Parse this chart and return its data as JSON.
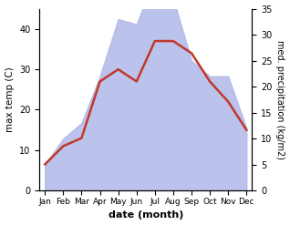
{
  "months": [
    "Jan",
    "Feb",
    "Mar",
    "Apr",
    "May",
    "Jun",
    "Jul",
    "Aug",
    "Sep",
    "Oct",
    "Nov",
    "Dec"
  ],
  "month_x": [
    0,
    1,
    2,
    3,
    4,
    5,
    6,
    7,
    8,
    9,
    10,
    11
  ],
  "temperature": [
    6.5,
    11,
    13,
    27,
    30,
    27,
    37,
    37,
    34,
    27,
    22,
    15
  ],
  "precipitation_mm": [
    5,
    10,
    13,
    22,
    33,
    32,
    41,
    37,
    25,
    22,
    22,
    12
  ],
  "temp_color": "#c0392b",
  "precip_fill_color": "#b0b8e8",
  "temp_ylim": [
    0,
    45
  ],
  "precip_ylim": [
    0,
    35
  ],
  "temp_yticks": [
    0,
    10,
    20,
    30,
    40
  ],
  "precip_yticks": [
    0,
    5,
    10,
    15,
    20,
    25,
    30,
    35
  ],
  "xlabel": "date (month)",
  "ylabel_left": "max temp (C)",
  "ylabel_right": "med. precipitation (kg/m2)",
  "fig_width": 3.18,
  "fig_height": 2.47,
  "dpi": 100
}
